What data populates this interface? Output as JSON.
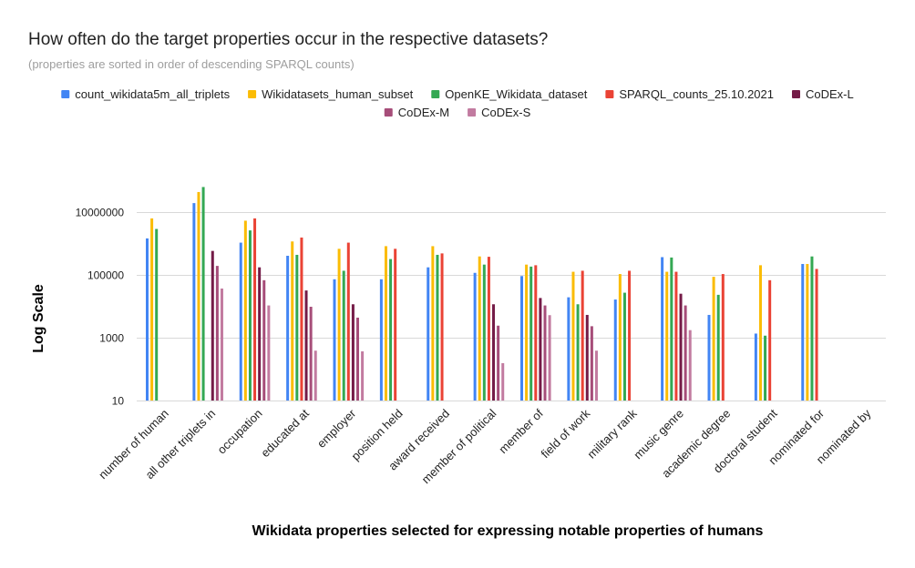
{
  "chart_data": {
    "type": "bar",
    "title": "How often do the target properties occur in the respective datasets?",
    "subtitle": "(properties are sorted in order of descending SPARQL counts)",
    "xlabel": "Wikidata properties selected for expressing notable properties of humans",
    "ylabel": "Log Scale",
    "yscale": "log",
    "ylim": [
      1,
      100000000
    ],
    "yticks": [
      10,
      1000,
      100000,
      10000000
    ],
    "ytick_labels": [
      "10",
      "1000",
      "100000",
      "10000000"
    ],
    "grid": true,
    "legend_position": "top",
    "categories": [
      "number of human",
      "all other triplets in",
      "occupation",
      "educated at",
      "employer",
      "position held",
      "award received",
      "member of political",
      "member of",
      "field of work",
      "military rank",
      "music genre",
      "academic degree",
      "doctoral student",
      "nominated for",
      "nominated by"
    ],
    "series": [
      {
        "name": "count_wikidata5m_all_triplets",
        "color": "#4285f4",
        "values": [
          1500000,
          20000000,
          1100000,
          420000,
          75000,
          75000,
          180000,
          120000,
          95000,
          20000,
          17000,
          380000,
          5500,
          1400,
          230000,
          null
        ]
      },
      {
        "name": "Wikidatasets_human_subset",
        "color": "#fbbc04",
        "values": [
          6500000,
          45000000,
          5500000,
          1200000,
          700000,
          850000,
          850000,
          400000,
          220000,
          130000,
          110000,
          130000,
          90000,
          210000,
          230000,
          6
        ]
      },
      {
        "name": "OpenKE_Wikidata_dataset",
        "color": "#34a853",
        "values": [
          3000000,
          65000000,
          2700000,
          450000,
          140000,
          330000,
          450000,
          220000,
          190000,
          12000,
          28000,
          370000,
          24000,
          1200,
          400000,
          null
        ]
      },
      {
        "name": "SPARQL_counts_25.10.2021",
        "color": "#ea4335",
        "values": [
          null,
          null,
          6500000,
          1600000,
          1100000,
          700000,
          500000,
          390000,
          210000,
          140000,
          140000,
          130000,
          110000,
          70000,
          160000,
          5
        ]
      },
      {
        "name": "CoDEx-L",
        "color": "#741b47",
        "values": [
          null,
          600000,
          180000,
          33000,
          12000,
          null,
          null,
          12000,
          19000,
          5500,
          null,
          26000,
          null,
          null,
          null,
          null
        ]
      },
      {
        "name": "CoDEx-M",
        "color": "#a64d79",
        "values": [
          null,
          200000,
          70000,
          10000,
          4500,
          null,
          null,
          2500,
          11000,
          2400,
          null,
          11000,
          null,
          null,
          null,
          null
        ]
      },
      {
        "name": "CoDEx-S",
        "color": "#c27ba0",
        "values": [
          null,
          38000,
          11000,
          400,
          380,
          null,
          null,
          160,
          5400,
          400,
          null,
          1800,
          null,
          null,
          null,
          null
        ]
      }
    ]
  }
}
